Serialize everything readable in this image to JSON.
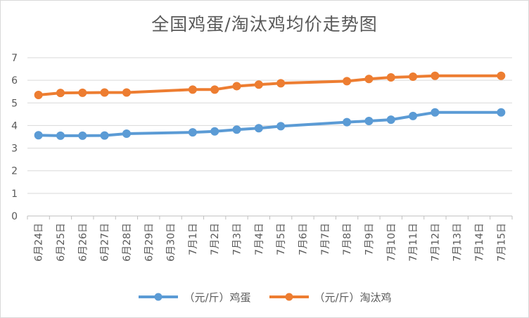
{
  "chart_data": {
    "type": "line",
    "title": "全国鸡蛋/淘汰鸡均价走势图",
    "xlabel": "",
    "ylabel": "",
    "ylim": [
      0,
      7
    ],
    "yticks": [
      "0",
      "1",
      "2",
      "3",
      "4",
      "5",
      "6",
      "7"
    ],
    "grid": true,
    "legend_position": "bottom",
    "categories": [
      "6月24日",
      "6月25日",
      "6月26日",
      "6月27日",
      "6月28日",
      "6月29日",
      "6月30日",
      "7月1日",
      "7月2日",
      "7月3日",
      "7月4日",
      "7月5日",
      "7月6日",
      "7月7日",
      "7月8日",
      "7月9日",
      "7月10日",
      "7月11日",
      "7月12日",
      "7月13日",
      "7月14日",
      "7月15日"
    ],
    "series": [
      {
        "name": "（元/斤）鸡蛋",
        "color": "#5B9BD5",
        "values": [
          3.57,
          3.55,
          3.55,
          3.56,
          3.64,
          null,
          null,
          3.7,
          3.74,
          3.82,
          3.88,
          3.97,
          null,
          null,
          4.15,
          4.2,
          4.26,
          4.42,
          4.58,
          null,
          null,
          4.58
        ]
      },
      {
        "name": "（元/斤）淘汰鸡",
        "color": "#ED7D31",
        "values": [
          5.35,
          5.44,
          5.45,
          5.46,
          5.46,
          null,
          null,
          5.59,
          5.59,
          5.74,
          5.81,
          5.87,
          null,
          null,
          5.96,
          6.06,
          6.13,
          6.16,
          6.2,
          null,
          null,
          6.2
        ]
      }
    ]
  }
}
